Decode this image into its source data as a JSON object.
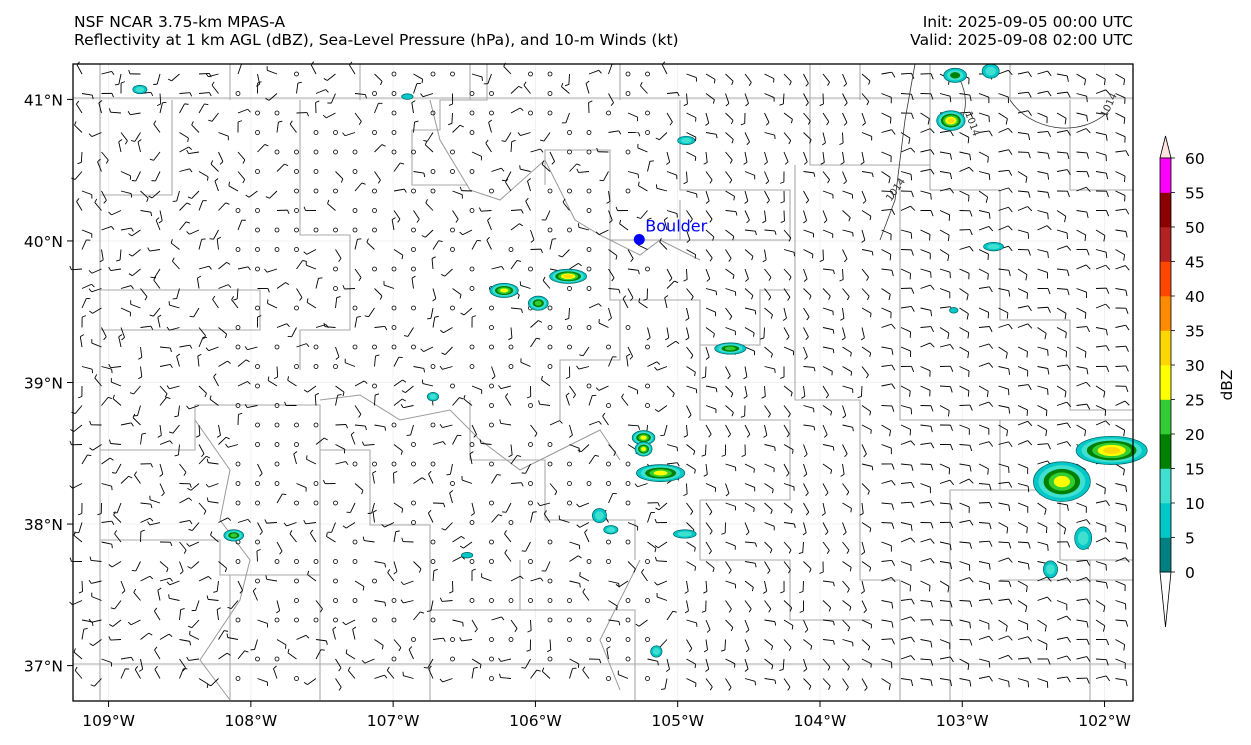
{
  "header": {
    "title_left_line1": "NSF NCAR 3.75-km MPAS-A",
    "title_left_line2": "Reflectivity at 1 km AGL (dBZ), Sea-Level Pressure (hPa), and 10-m Winds (kt)",
    "title_right_line1": "Init: 2025-09-05 00:00 UTC",
    "title_right_line2": "Valid: 2025-09-08 02:00 UTC"
  },
  "map": {
    "lon_range": [
      -109.25,
      -101.8
    ],
    "lat_range": [
      36.75,
      41.25
    ],
    "x_ticks": [
      {
        "lon": -109,
        "label": "109°W"
      },
      {
        "lon": -108,
        "label": "108°W"
      },
      {
        "lon": -107,
        "label": "107°W"
      },
      {
        "lon": -106,
        "label": "106°W"
      },
      {
        "lon": -105,
        "label": "105°W"
      },
      {
        "lon": -104,
        "label": "104°W"
      },
      {
        "lon": -103,
        "label": "103°W"
      },
      {
        "lon": -102,
        "label": "102°W"
      }
    ],
    "y_ticks": [
      {
        "lat": 41,
        "label": "41°N"
      },
      {
        "lat": 40,
        "label": "40°N"
      },
      {
        "lat": 39,
        "label": "39°N"
      },
      {
        "lat": 38,
        "label": "38°N"
      },
      {
        "lat": 37,
        "label": "37°N"
      }
    ],
    "city": {
      "name": "Boulder",
      "lon": -105.27,
      "lat": 40.01,
      "color": "#0000ff"
    },
    "isobar_labels": [
      {
        "text": "1014",
        "lon": -103.45,
        "lat": 40.35,
        "rotation": -55
      },
      {
        "text": "1014",
        "lon": -102.95,
        "lat": 40.82,
        "rotation": 70
      },
      {
        "text": "1014",
        "lon": -101.95,
        "lat": 40.95,
        "rotation": -65
      }
    ],
    "reflectivity_cells": [
      {
        "lon": -108.78,
        "lat": 41.07,
        "rx": 0.05,
        "ry": 0.03,
        "dbz": 10
      },
      {
        "lon": -106.9,
        "lat": 41.02,
        "rx": 0.04,
        "ry": 0.02,
        "dbz": 5
      },
      {
        "lon": -103.05,
        "lat": 41.17,
        "rx": 0.08,
        "ry": 0.05,
        "dbz": 15
      },
      {
        "lon": -102.8,
        "lat": 41.2,
        "rx": 0.06,
        "ry": 0.05,
        "dbz": 10
      },
      {
        "lon": -103.08,
        "lat": 40.85,
        "rx": 0.1,
        "ry": 0.07,
        "dbz": 30
      },
      {
        "lon": -104.94,
        "lat": 40.71,
        "rx": 0.06,
        "ry": 0.03,
        "dbz": 10
      },
      {
        "lon": -102.78,
        "lat": 39.96,
        "rx": 0.07,
        "ry": 0.03,
        "dbz": 10
      },
      {
        "lon": -103.06,
        "lat": 39.51,
        "rx": 0.03,
        "ry": 0.02,
        "dbz": 5
      },
      {
        "lon": -105.77,
        "lat": 39.75,
        "rx": 0.13,
        "ry": 0.05,
        "dbz": 30
      },
      {
        "lon": -106.22,
        "lat": 39.65,
        "rx": 0.1,
        "ry": 0.05,
        "dbz": 25
      },
      {
        "lon": -105.98,
        "lat": 39.56,
        "rx": 0.07,
        "ry": 0.05,
        "dbz": 20
      },
      {
        "lon": -104.63,
        "lat": 39.24,
        "rx": 0.11,
        "ry": 0.04,
        "dbz": 20
      },
      {
        "lon": -106.72,
        "lat": 38.9,
        "rx": 0.04,
        "ry": 0.03,
        "dbz": 10
      },
      {
        "lon": -105.24,
        "lat": 38.61,
        "rx": 0.08,
        "ry": 0.05,
        "dbz": 25
      },
      {
        "lon": -105.24,
        "lat": 38.53,
        "rx": 0.06,
        "ry": 0.05,
        "dbz": 25
      },
      {
        "lon": -105.12,
        "lat": 38.36,
        "rx": 0.17,
        "ry": 0.06,
        "dbz": 25
      },
      {
        "lon": -105.55,
        "lat": 38.06,
        "rx": 0.05,
        "ry": 0.05,
        "dbz": 10
      },
      {
        "lon": -105.47,
        "lat": 37.96,
        "rx": 0.05,
        "ry": 0.03,
        "dbz": 10
      },
      {
        "lon": -104.95,
        "lat": 37.93,
        "rx": 0.08,
        "ry": 0.03,
        "dbz": 10
      },
      {
        "lon": -106.48,
        "lat": 37.78,
        "rx": 0.04,
        "ry": 0.02,
        "dbz": 5
      },
      {
        "lon": -108.12,
        "lat": 37.92,
        "rx": 0.07,
        "ry": 0.04,
        "dbz": 20
      },
      {
        "lon": -105.15,
        "lat": 37.1,
        "rx": 0.04,
        "ry": 0.04,
        "dbz": 10
      },
      {
        "lon": -102.3,
        "lat": 38.3,
        "rx": 0.2,
        "ry": 0.14,
        "dbz": 25
      },
      {
        "lon": -101.95,
        "lat": 38.52,
        "rx": 0.25,
        "ry": 0.1,
        "dbz": 30
      },
      {
        "lon": -102.15,
        "lat": 37.9,
        "rx": 0.06,
        "ry": 0.08,
        "dbz": 10
      },
      {
        "lon": -102.38,
        "lat": 37.68,
        "rx": 0.05,
        "ry": 0.06,
        "dbz": 10
      }
    ]
  },
  "colorbar": {
    "label": "dBZ",
    "ticks": [
      "0",
      "5",
      "10",
      "15",
      "20",
      "25",
      "30",
      "35",
      "40",
      "45",
      "50",
      "55",
      "60"
    ],
    "colors": [
      "#008080",
      "#00c8c8",
      "#40e0d0",
      "#008000",
      "#32cd32",
      "#ffff00",
      "#ffd700",
      "#ff8c00",
      "#ff4500",
      "#b22222",
      "#8b0000",
      "#ff00ff",
      "#ffe4e1"
    ]
  }
}
